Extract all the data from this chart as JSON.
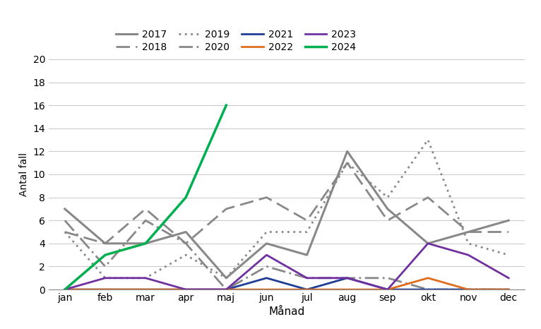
{
  "months": [
    "jan",
    "feb",
    "mar",
    "apr",
    "maj",
    "jun",
    "jul",
    "aug",
    "sep",
    "okt",
    "nov",
    "dec"
  ],
  "series": {
    "2017": {
      "values": [
        7,
        4,
        4,
        5,
        1,
        4,
        3,
        12,
        7,
        4,
        5,
        6
      ],
      "color": "#888888",
      "linestyle": "solid",
      "linewidth": 2.2,
      "dashes": null
    },
    "2018": {
      "values": [
        5,
        4,
        7,
        4,
        7,
        8,
        6,
        11,
        6,
        8,
        5,
        5
      ],
      "color": "#888888",
      "linestyle": "dashed",
      "linewidth": 2.0,
      "dashes": [
        7,
        3
      ]
    },
    "2019": {
      "values": [
        5,
        1,
        1,
        3,
        1,
        5,
        5,
        11,
        8,
        13,
        4,
        3
      ],
      "color": "#888888",
      "linestyle": "dotted",
      "linewidth": 2.0,
      "dashes": [
        1,
        2
      ]
    },
    "2020": {
      "values": [
        6,
        2,
        6,
        4,
        0,
        2,
        1,
        1,
        1,
        0,
        0,
        0
      ],
      "color": "#888888",
      "linestyle": "dashdot",
      "linewidth": 2.0,
      "dashes": [
        7,
        2,
        1,
        2
      ]
    },
    "2021": {
      "values": [
        0,
        0,
        0,
        0,
        0,
        1,
        0,
        1,
        0,
        0,
        0,
        0
      ],
      "color": "#1f3d96",
      "linestyle": "solid",
      "linewidth": 2.0,
      "dashes": null
    },
    "2022": {
      "values": [
        0,
        0,
        0,
        0,
        0,
        0,
        0,
        0,
        0,
        1,
        0,
        0
      ],
      "color": "#e06c1e",
      "linestyle": "solid",
      "linewidth": 2.0,
      "dashes": null
    },
    "2023": {
      "values": [
        0,
        1,
        1,
        0,
        0,
        3,
        1,
        1,
        0,
        4,
        3,
        1
      ],
      "color": "#7030a0",
      "linestyle": "solid",
      "linewidth": 2.0,
      "dashes": null
    },
    "2024": {
      "values": [
        0,
        3,
        4,
        8,
        16,
        null,
        null,
        null,
        null,
        null,
        null,
        null
      ],
      "color": "#00b050",
      "linestyle": "solid",
      "linewidth": 2.5,
      "dashes": null
    }
  },
  "ylabel": "Antal fall",
  "xlabel": "Månad",
  "ylim": [
    0,
    20
  ],
  "yticks": [
    0,
    2,
    4,
    6,
    8,
    10,
    12,
    14,
    16,
    18,
    20
  ],
  "background_color": "#ffffff",
  "grid_color": "#c8c8c8",
  "legend_order": [
    "2017",
    "2018",
    "2019",
    "2020",
    "2021",
    "2022",
    "2023",
    "2024"
  ]
}
